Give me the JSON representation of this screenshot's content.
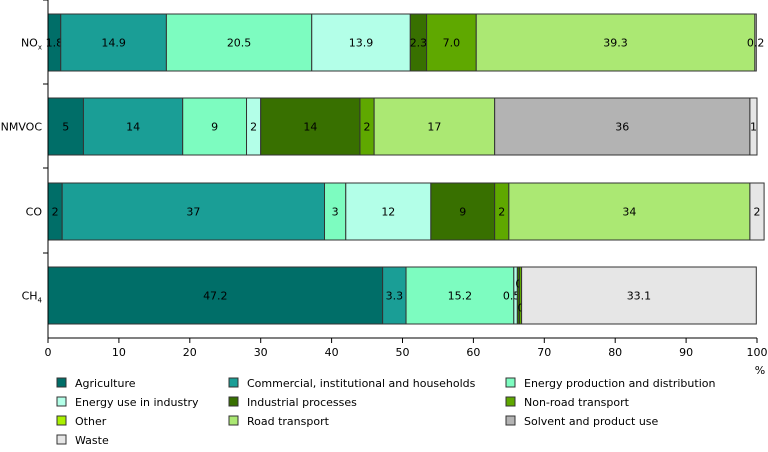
{
  "chart_data": {
    "type": "bar",
    "orientation": "horizontal",
    "stacked": true,
    "title": "",
    "xlabel": "%",
    "ylabel": "",
    "xlim": [
      0,
      100
    ],
    "xticks": [
      "0",
      "10",
      "20",
      "30",
      "40",
      "50",
      "60",
      "70",
      "80",
      "90",
      "100"
    ],
    "grid": false,
    "legend_position": "bottom",
    "categories": [
      {
        "main": "NO",
        "sub": "x"
      },
      {
        "main": "NMVOC",
        "sub": ""
      },
      {
        "main": "CO",
        "sub": ""
      },
      {
        "main": "CH",
        "sub": "4"
      }
    ],
    "series": [
      {
        "name": "Agriculture",
        "color": "#006e68",
        "values": [
          1.8,
          5,
          2,
          47.2
        ],
        "labels": [
          "1.8",
          "5",
          "2",
          "47.2"
        ]
      },
      {
        "name": "Commercial, institutional and households",
        "color": "#1a9e96",
        "values": [
          14.9,
          14,
          37,
          3.3
        ],
        "labels": [
          "14.9",
          "14",
          "37",
          "3.3"
        ]
      },
      {
        "name": "Energy production and distribution",
        "color": "#7dfcc0",
        "values": [
          20.5,
          9,
          3,
          15.2
        ],
        "labels": [
          "20.5",
          "9",
          "3",
          "15.2"
        ]
      },
      {
        "name": "Energy use in industry",
        "color": "#b3ffe8",
        "values": [
          13.9,
          2,
          12,
          0.5
        ],
        "labels": [
          "13.9",
          "2",
          "12",
          "0.5"
        ]
      },
      {
        "name": "Industrial processes",
        "color": "#387000",
        "values": [
          2.3,
          14,
          9,
          0.3
        ],
        "labels": [
          "2.3",
          "14",
          "9",
          "0.3"
        ]
      },
      {
        "name": "Non-road transport",
        "color": "#5fa800",
        "values": [
          7.0,
          2,
          2,
          0.3
        ],
        "labels": [
          "7.0",
          "2",
          "2",
          "0.3"
        ]
      },
      {
        "name": "Other",
        "color": "#aaf000",
        "values": [
          0,
          0,
          0,
          0
        ],
        "labels": [
          "",
          "",
          "",
          ""
        ]
      },
      {
        "name": "Road transport",
        "color": "#abe873",
        "values": [
          39.3,
          17,
          34,
          0
        ],
        "labels": [
          "39.3",
          "17",
          "34",
          ""
        ]
      },
      {
        "name": "Solvent and product use",
        "color": "#b3b3b3",
        "values": [
          0,
          36,
          0,
          0
        ],
        "labels": [
          "",
          "36",
          "",
          ""
        ]
      },
      {
        "name": "Waste",
        "color": "#e6e6e6",
        "values": [
          0.2,
          1,
          2,
          33.1
        ],
        "labels": [
          "0.2",
          "1",
          "2",
          "33.1"
        ]
      }
    ]
  }
}
